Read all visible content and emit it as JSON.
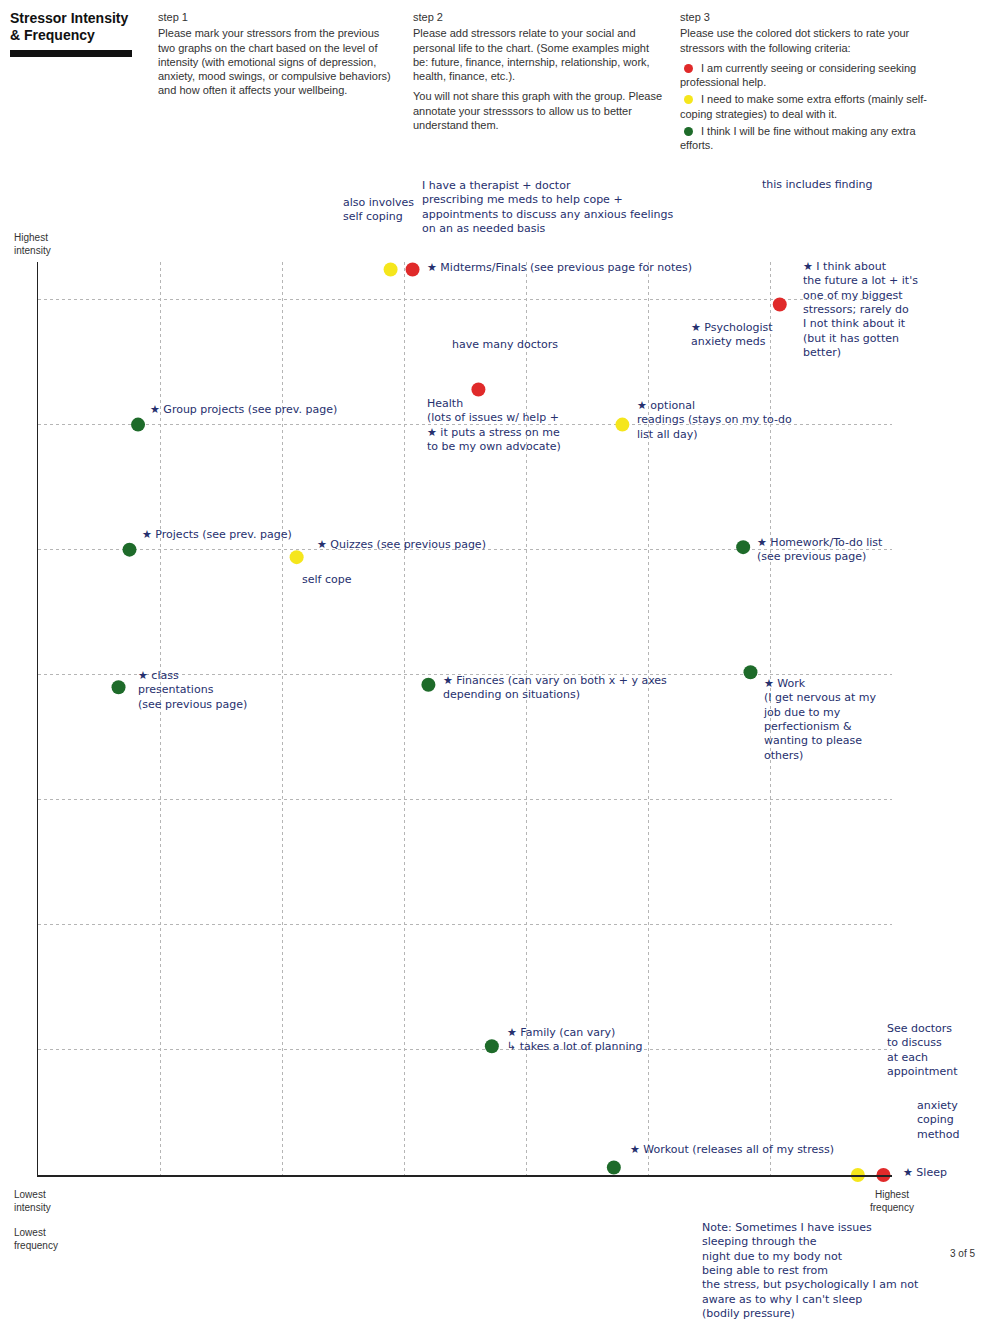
{
  "header": {
    "title": "Stressor Intensity & Frequency",
    "steps": [
      {
        "heading": "step 1",
        "paragraphs": [
          "Please mark your stressors from the previous two graphs  on the chart based on the level of intensity (with emotional signs of depression, anxiety, mood swings, or compulsive behaviors) and how often it affects your wellbeing."
        ]
      },
      {
        "heading": "step 2",
        "paragraphs": [
          "Please add stressors relate to your social and personal life to the chart. (Some examples might be: future, finance, internship, relationship, work, health, finance, etc.).",
          "You will not share this graph with the group. Please annotate your stresssors to allow us to better understand them."
        ]
      },
      {
        "heading": "step 3",
        "paragraphs": [
          "Please use the colored dot stickers to rate your stressors with the following criteria:"
        ]
      }
    ]
  },
  "page_number": "3 of 5",
  "chart_data": {
    "type": "scatter",
    "marker": "circle",
    "grid": true,
    "tick_labels": false,
    "xlim": [
      0,
      7
    ],
    "xticks": [
      0,
      1,
      2,
      3,
      4,
      5,
      6,
      7
    ],
    "ylim": [
      0,
      7.3
    ],
    "yticks": [
      0,
      1,
      2,
      3,
      4,
      5,
      6,
      7
    ],
    "xlabel": [
      "Lowest frequency",
      "Highest frequency"
    ],
    "ylabel": [
      "Lowest intensity",
      "Highest intensity"
    ],
    "series": [
      {
        "name": "I am currently seeing or considering seeking professional help.",
        "color": "#e02a2a",
        "x": [
          3.07,
          3.61,
          6.08,
          6.93
        ],
        "y": [
          7.24,
          6.28,
          6.96,
          0
        ]
      },
      {
        "name": "I need to make some extra efforts (mainly self-coping strategies) to deal with it.",
        "color": "#f5e61c",
        "x": [
          2.89,
          4.79,
          2.12,
          6.72
        ],
        "y": [
          7.24,
          6.0,
          4.94,
          0
        ]
      },
      {
        "name": "I think I will be fine without making any extra efforts.",
        "color": "#1e6b2a",
        "x": [
          0.82,
          0.75,
          5.78,
          0.66,
          3.2,
          5.84,
          3.72,
          4.72
        ],
        "y": [
          6.0,
          5.0,
          5.02,
          3.9,
          3.92,
          4.02,
          1.03,
          0.06
        ]
      }
    ],
    "annotations": [
      {
        "lines": [
          "★ Midterms/Finals (see previous page for notes)"
        ],
        "x": 3.17,
        "y": 7.26
      },
      {
        "lines": [
          "also involves",
          "self coping"
        ],
        "x": 2.48,
        "y": 7.72
      },
      {
        "lines": [
          "I have a therapist + doctor",
          "prescribing me meds to help cope +",
          "appointments to discuss any anxious feelings",
          "on an as needed basis"
        ],
        "x": 3.13,
        "y": 7.74
      },
      {
        "lines": [
          "this includes finding"
        ],
        "x": 5.92,
        "y": 7.92
      },
      {
        "lines": [
          "★ Psychologist",
          "anxiety meds"
        ],
        "x": 5.34,
        "y": 6.72
      },
      {
        "lines": [
          "★ I think about",
          "the future a lot + it's",
          "one of my biggest",
          "stressors; rarely do",
          "I not think about it",
          "(but it has gotten",
          "better)"
        ],
        "x": 6.25,
        "y": 6.92
      },
      {
        "lines": [
          "★ Group projects (see prev. page)"
        ],
        "x": 0.9,
        "y": 6.12
      },
      {
        "lines": [
          "have many doctors"
        ],
        "x": 3.38,
        "y": 6.64
      },
      {
        "lines": [
          "Health",
          "(lots of issues w/ help +",
          "★ it puts a stress on me",
          "to be my own advocate)"
        ],
        "x": 3.17,
        "y": 6.0
      },
      {
        "lines": [
          "★ optional",
          "readings (stays on my to-do",
          "list all day)"
        ],
        "x": 4.89,
        "y": 6.04
      },
      {
        "lines": [
          "★ Projects (see prev. page)"
        ],
        "x": 0.84,
        "y": 5.12
      },
      {
        "lines": [
          "★ Quizzes (see previous page)"
        ],
        "x": 2.27,
        "y": 5.04
      },
      {
        "lines": [
          "self cope"
        ],
        "x": 2.15,
        "y": 4.76
      },
      {
        "lines": [
          "★ Homework/To-do list",
          "(see previous page)"
        ],
        "x": 5.88,
        "y": 5.0
      },
      {
        "lines": [
          "★ class",
          "presentations",
          "(see previous page)"
        ],
        "x": 0.8,
        "y": 3.88
      },
      {
        "lines": [
          "★ Finances (can vary on both x + y axes",
          "depending on situations)"
        ],
        "x": 3.3,
        "y": 3.9
      },
      {
        "lines": [
          "★ Work",
          "(I get nervous at my",
          "job due to my",
          "perfectionism &",
          "wanting to please",
          "others)"
        ],
        "x": 5.93,
        "y": 3.64
      },
      {
        "lines": [
          "★ Family (can vary)",
          "↳ takes a lot of planning"
        ],
        "x": 3.83,
        "y": 1.08
      },
      {
        "lines": [
          "★ Workout (releases all of my stress)"
        ],
        "x": 4.84,
        "y": 0.2
      },
      {
        "lines": [
          "★ Sleep"
        ],
        "x": 7.07,
        "y": 0.02
      },
      {
        "lines": [
          "See doctors",
          "to discuss",
          "at each",
          "appointment"
        ],
        "x": 6.94,
        "y": 1.0
      },
      {
        "lines": [
          "anxiety",
          "coping",
          "method"
        ],
        "x": 7.19,
        "y": 0.44
      },
      {
        "lines": [
          "Note: Sometimes I have issues",
          "sleeping through the",
          "night due to my body not",
          "being able to rest from",
          "the stress, but psychologically I am not",
          "aware as to why I can't sleep",
          "(bodily pressure)"
        ],
        "x": 5.43,
        "y": -0.76
      }
    ]
  }
}
